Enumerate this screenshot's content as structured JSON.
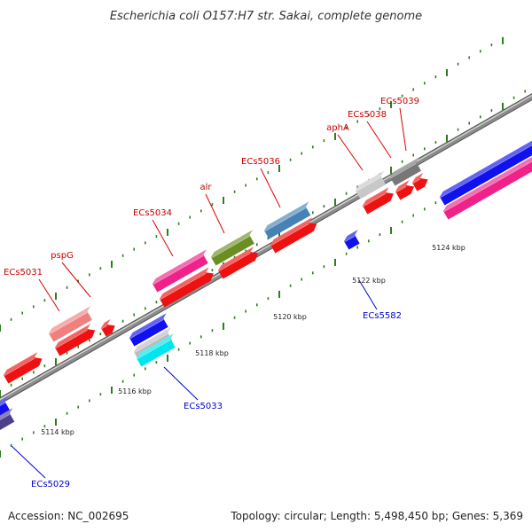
{
  "title": "Escherichia coli O157:H7 str. Sakai, complete genome",
  "footer": {
    "accession": "Accession: NC_002695",
    "stats": "Topology: circular; Length: 5,498,450 bp; Genes: 5,369"
  },
  "colors": {
    "backbone": "#8c8c8c",
    "tick": "#2e7d1e",
    "forward_label": "#cc0000",
    "reverse_label": "#0000cc",
    "callout_forward": "#dd0000",
    "callout_reverse": "#0000dd"
  },
  "scale": {
    "unit": "kbp",
    "ticks": [
      "5114 kbp",
      "5116 kbp",
      "5118 kbp",
      "5120 kbp",
      "5122 kbp",
      "5124 kbp"
    ]
  },
  "labels": {
    "forward": [
      "ECs5031",
      "pspG",
      "ECs5034",
      "alr",
      "ECs5036",
      "aphA",
      "ECs5038",
      "ECs5039"
    ],
    "reverse": [
      "ECs5029",
      "ECs5033",
      "ECs5582"
    ]
  }
}
